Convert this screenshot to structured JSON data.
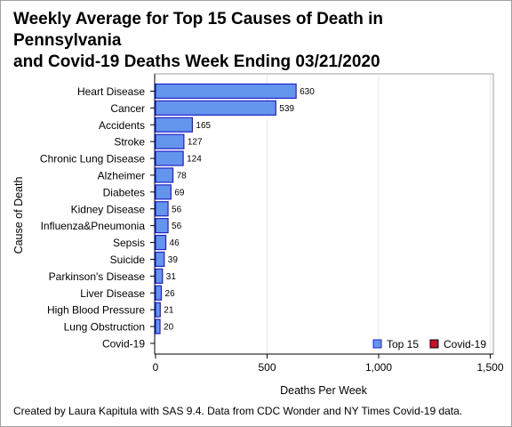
{
  "title": {
    "line1": "Weekly Average for Top 15 Causes of Death in",
    "line2": "Pennsylvania",
    "line3": "and Covid-19 Deaths Week Ending 03/21/2020"
  },
  "footnote": "Created by Laura Kapitula with SAS 9.4. Data from CDC Wonder and NY Times Covid-19 data.",
  "colors": {
    "top15_fill": "#6495ed",
    "top15_stroke": "#1f20c8",
    "covid_fill": "#c8102e",
    "grid": "#e8e8e8",
    "axis": "#000000",
    "plot_border": "#a0a0a0"
  },
  "chart_data": {
    "type": "bar",
    "orientation": "horizontal",
    "xlabel": "Deaths Per Week",
    "ylabel": "Cause of Death",
    "xlim": [
      0,
      1500
    ],
    "xticks": [
      0,
      500,
      1000,
      1500
    ],
    "xtick_labels": [
      "0",
      "500",
      "1,000",
      "1,500"
    ],
    "grid": true,
    "legend_position": "bottom-right",
    "categories": [
      "Heart Disease",
      "Cancer",
      "Accidents",
      "Stroke",
      "Chronic Lung Disease",
      "Alzheimer",
      "Diabetes",
      "Kidney Disease",
      "Influenza&Pneumonia",
      "Sepsis",
      "Suicide",
      "Parkinson's Disease",
      "Liver Disease",
      "High Blood Pressure",
      "Lung Obstruction",
      "Covid-19"
    ],
    "series": [
      {
        "name": "Top 15",
        "values": [
          630,
          539,
          165,
          127,
          124,
          78,
          69,
          56,
          56,
          46,
          39,
          31,
          26,
          21,
          20,
          null
        ]
      },
      {
        "name": "Covid-19",
        "values": [
          null,
          null,
          null,
          null,
          null,
          null,
          null,
          null,
          null,
          null,
          null,
          null,
          null,
          null,
          null,
          0
        ]
      }
    ]
  }
}
